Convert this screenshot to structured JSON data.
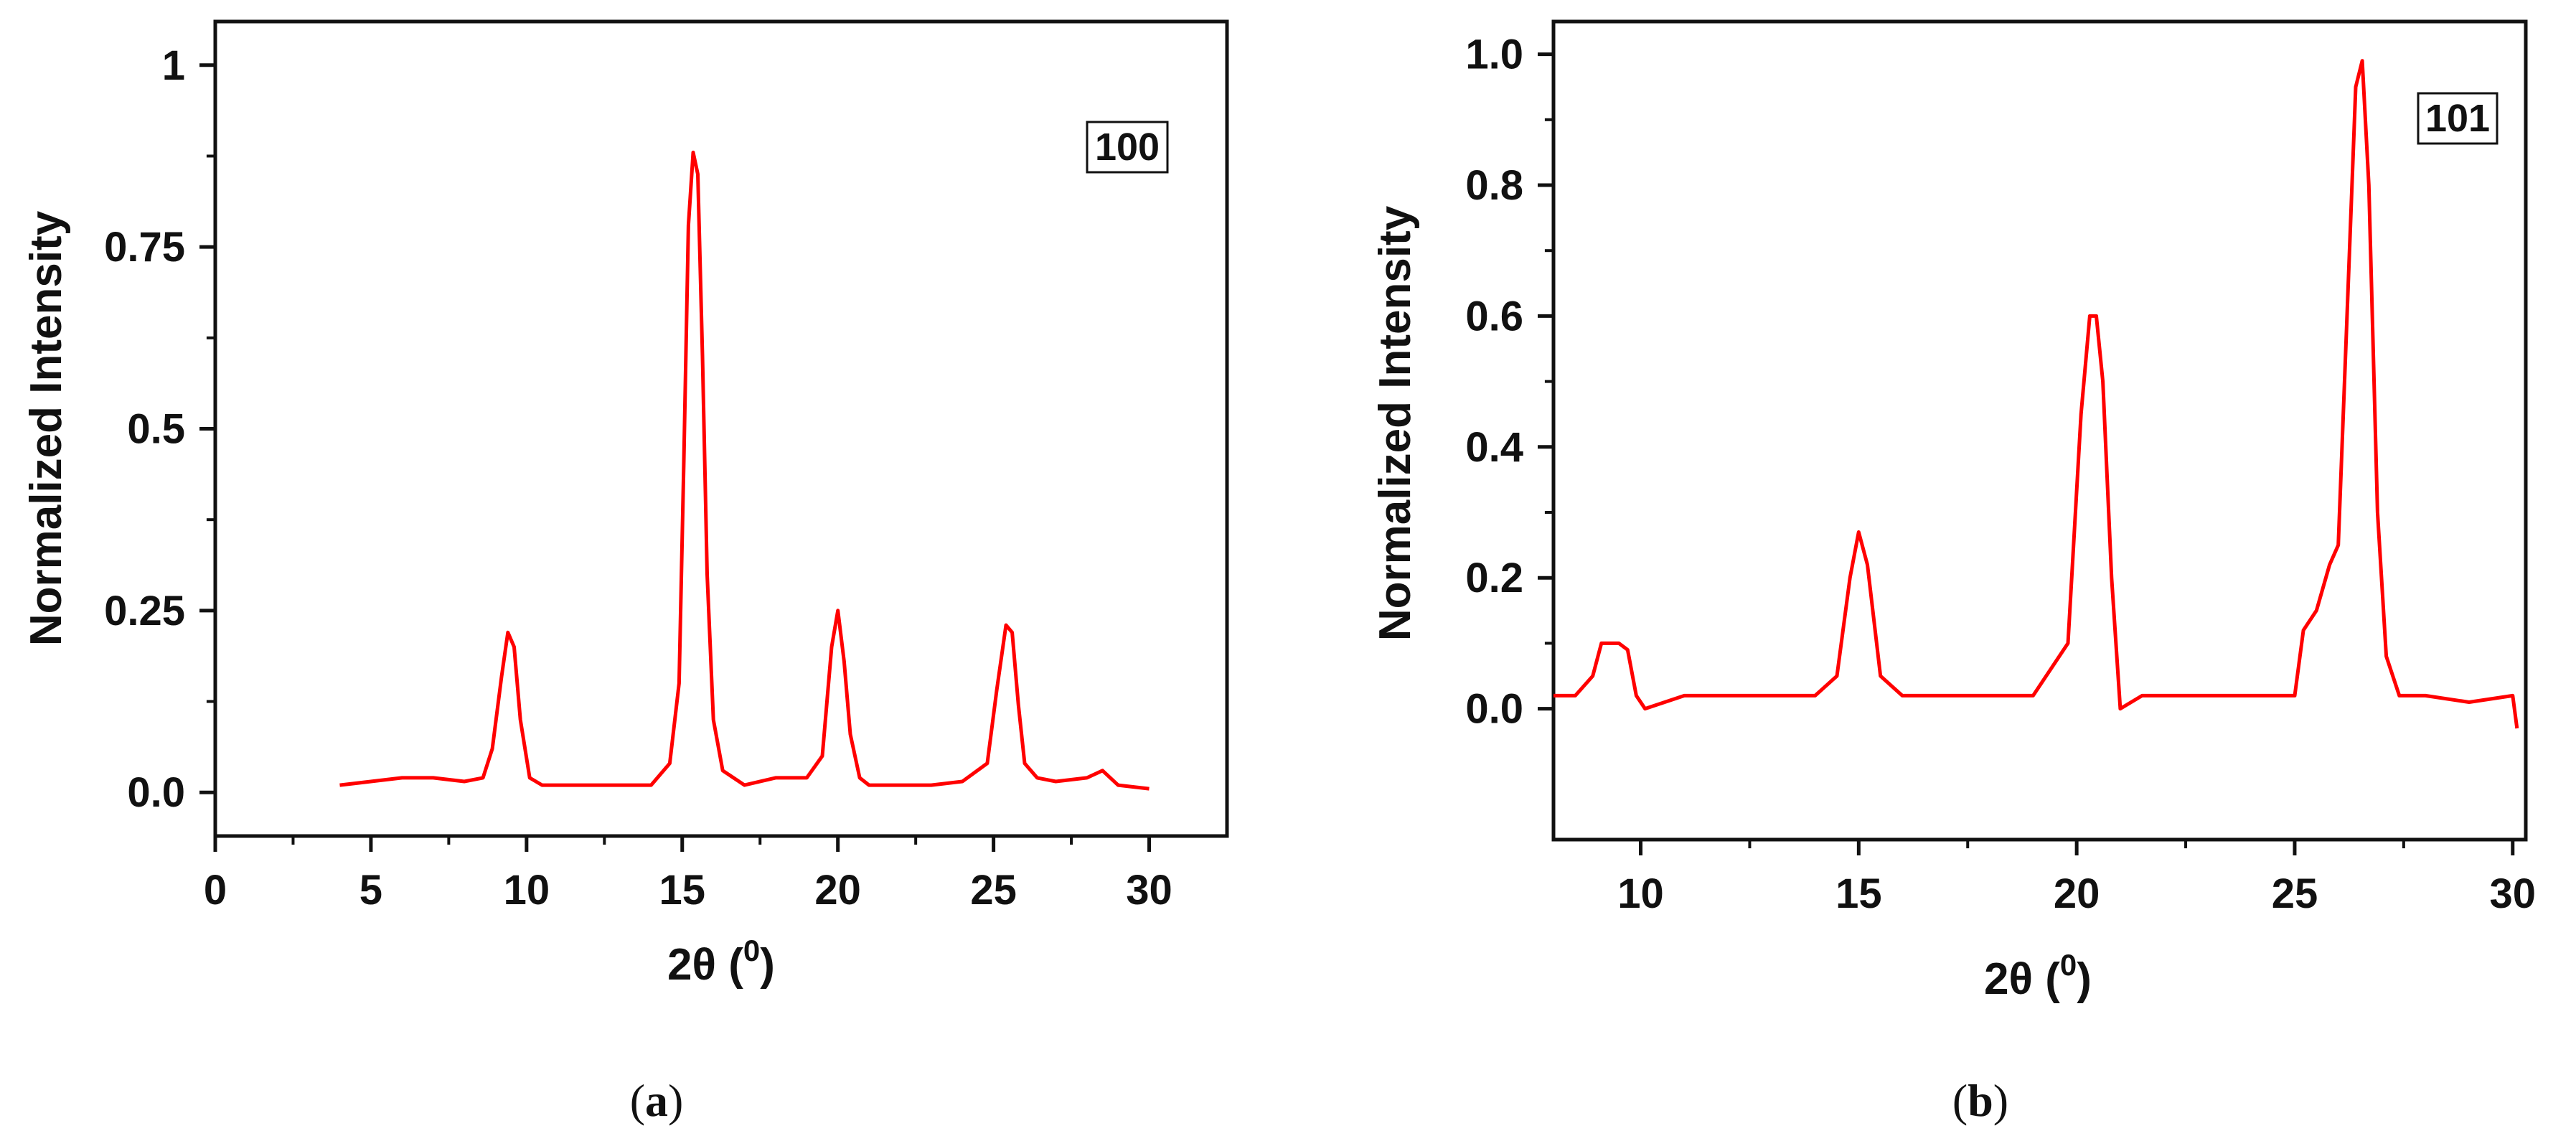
{
  "chart_data": [
    {
      "type": "line",
      "panel_caption_letter": "a",
      "legend_box": "100",
      "xlabel": "2θ",
      "xlabel_unit_sup": "0",
      "ylabel": "Normalized Intensity",
      "xlim": [
        0,
        32.5
      ],
      "ylim": [
        -0.06,
        1.06
      ],
      "xticks": [
        0,
        5,
        10,
        15,
        20,
        25,
        30
      ],
      "yticks": [
        0,
        0.25,
        0.5,
        0.75,
        1
      ],
      "ytick_labels": [
        "0.0",
        "0.25",
        "0.5",
        "0.75",
        "1"
      ],
      "grid": false,
      "color": "#ff0000",
      "series": [
        {
          "x": [
            4.0,
            5.0,
            6.0,
            7.0,
            8.0,
            8.6,
            8.9,
            9.2,
            9.4,
            9.6,
            9.8,
            10.1,
            10.5,
            11.0,
            12.0,
            13.0,
            14.0,
            14.6,
            14.9,
            15.05,
            15.2,
            15.35,
            15.5,
            15.65,
            15.8,
            16.0,
            16.3,
            17.0,
            18.0,
            19.0,
            19.5,
            19.8,
            20.0,
            20.2,
            20.4,
            20.7,
            21.0,
            22.0,
            23.0,
            24.0,
            24.8,
            25.1,
            25.4,
            25.6,
            25.8,
            26.0,
            26.4,
            27.0,
            28.0,
            28.5,
            29.0,
            30.0
          ],
          "y": [
            0.01,
            0.015,
            0.02,
            0.02,
            0.015,
            0.02,
            0.06,
            0.16,
            0.22,
            0.2,
            0.1,
            0.02,
            0.01,
            0.01,
            0.01,
            0.01,
            0.01,
            0.04,
            0.15,
            0.45,
            0.78,
            0.88,
            0.85,
            0.6,
            0.3,
            0.1,
            0.03,
            0.01,
            0.02,
            0.02,
            0.05,
            0.2,
            0.25,
            0.18,
            0.08,
            0.02,
            0.01,
            0.01,
            0.01,
            0.015,
            0.04,
            0.14,
            0.23,
            0.22,
            0.12,
            0.04,
            0.02,
            0.015,
            0.02,
            0.03,
            0.01,
            0.005
          ]
        }
      ]
    },
    {
      "type": "line",
      "panel_caption_letter": "b",
      "legend_box": "101",
      "xlabel": "2θ",
      "xlabel_unit_sup": "0",
      "ylabel": "Normalized Intensity",
      "xlim": [
        8,
        30.3
      ],
      "ylim": [
        -0.2,
        1.05
      ],
      "xticks": [
        10,
        15,
        20,
        25,
        30
      ],
      "yticks": [
        0,
        0.2,
        0.4,
        0.6,
        0.8,
        1.0
      ],
      "ytick_labels": [
        "0.0",
        "0.2",
        "0.4",
        "0.6",
        "0.8",
        "1.0"
      ],
      "grid": false,
      "color": "#ff0000",
      "series": [
        {
          "x": [
            8.0,
            8.5,
            8.9,
            9.1,
            9.3,
            9.5,
            9.7,
            9.9,
            10.1,
            11.0,
            12.0,
            13.0,
            14.0,
            14.5,
            14.8,
            15.0,
            15.2,
            15.5,
            16.0,
            17.0,
            18.0,
            19.0,
            19.8,
            20.1,
            20.3,
            20.45,
            20.6,
            20.8,
            21.0,
            21.5,
            22.0,
            23.0,
            24.0,
            25.0,
            25.2,
            25.5,
            25.8,
            26.0,
            26.2,
            26.4,
            26.55,
            26.7,
            26.9,
            27.1,
            27.4,
            28.0,
            29.0,
            30.0,
            30.1
          ],
          "y": [
            0.02,
            0.02,
            0.05,
            0.1,
            0.1,
            0.1,
            0.09,
            0.02,
            0.0,
            0.02,
            0.02,
            0.02,
            0.02,
            0.05,
            0.2,
            0.27,
            0.22,
            0.05,
            0.02,
            0.02,
            0.02,
            0.02,
            0.1,
            0.45,
            0.6,
            0.6,
            0.5,
            0.2,
            0.0,
            0.02,
            0.02,
            0.02,
            0.02,
            0.02,
            0.12,
            0.15,
            0.22,
            0.25,
            0.6,
            0.95,
            0.99,
            0.8,
            0.3,
            0.08,
            0.02,
            0.02,
            0.01,
            0.02,
            -0.03
          ]
        }
      ]
    }
  ]
}
